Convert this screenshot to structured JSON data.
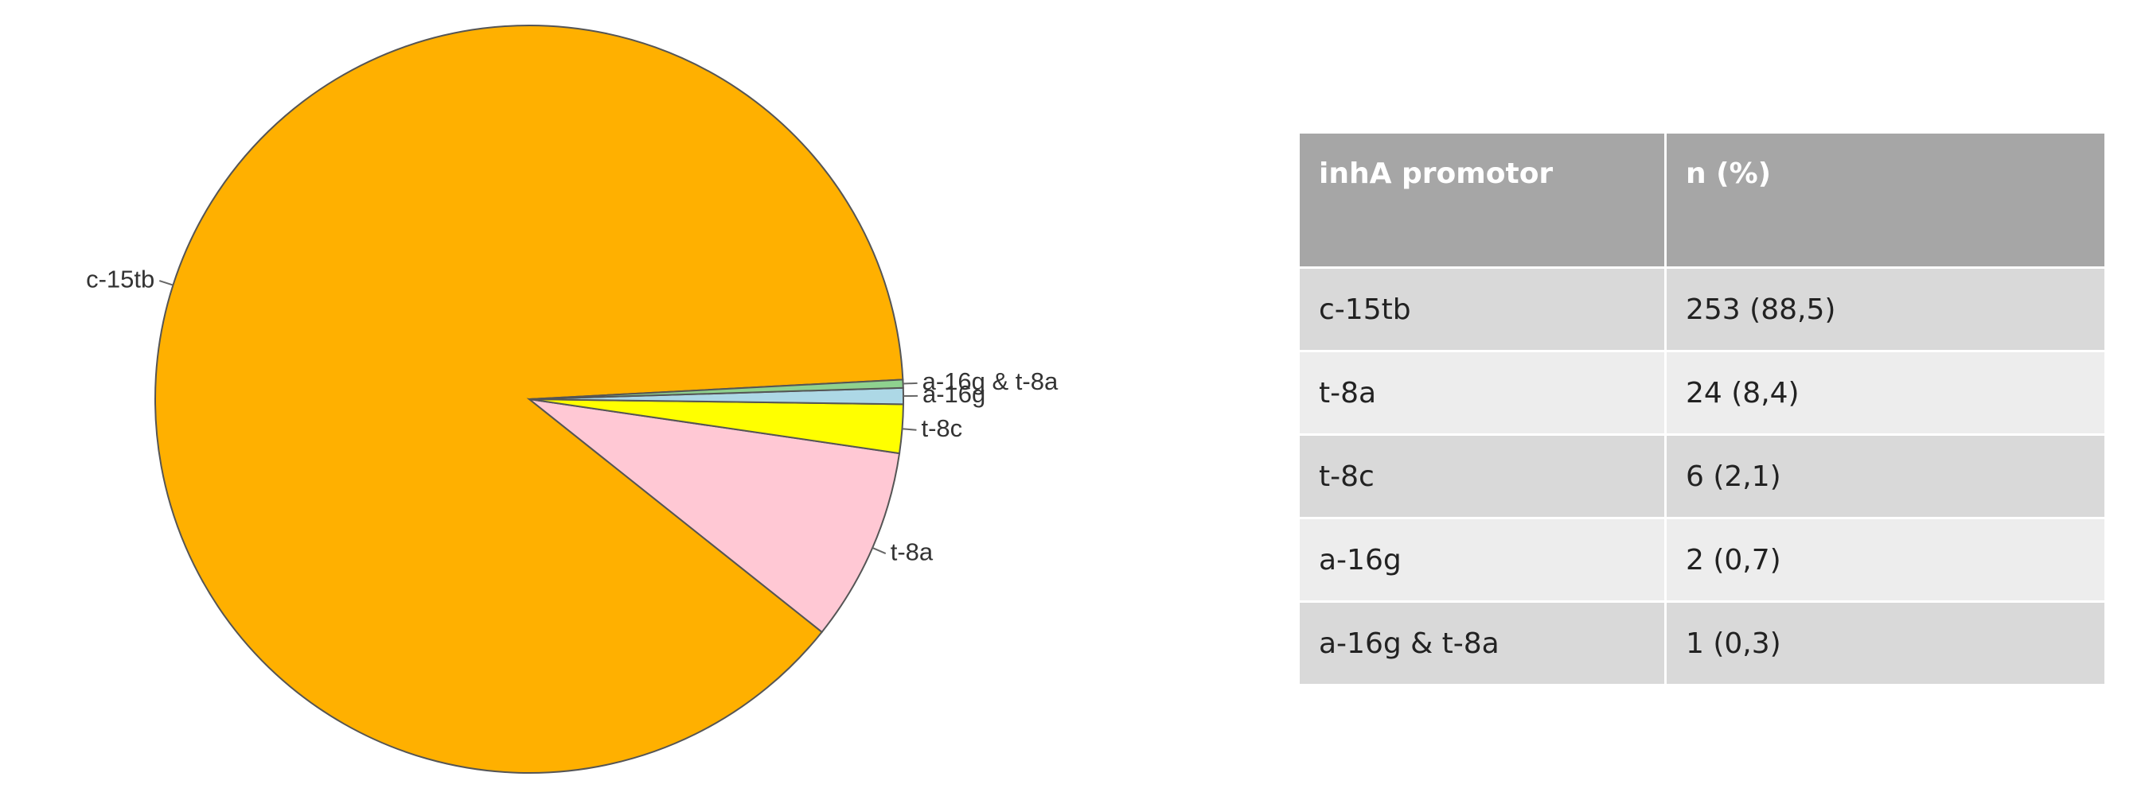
{
  "chart_data": {
    "type": "pie",
    "categories": [
      "c-15tb",
      "t-8a",
      "t-8c",
      "a-16g",
      "a-16g & t-8a"
    ],
    "values": [
      253,
      24,
      6,
      2,
      1
    ],
    "colors": [
      "#FFB000",
      "#FFC8D4",
      "#FFFF00",
      "#ADD8E6",
      "#8FD18F"
    ]
  },
  "table": {
    "header": [
      "inhA promotor",
      "n (%)"
    ],
    "rows": [
      [
        "c-15tb",
        "253 (88,5)"
      ],
      [
        "t-8a",
        "24 (8,4)"
      ],
      [
        "t-8c",
        "6 (2,1)"
      ],
      [
        "a-16g",
        "2 (0,7)"
      ],
      [
        "a-16g & t-8a",
        "1 (0,3)"
      ]
    ]
  }
}
